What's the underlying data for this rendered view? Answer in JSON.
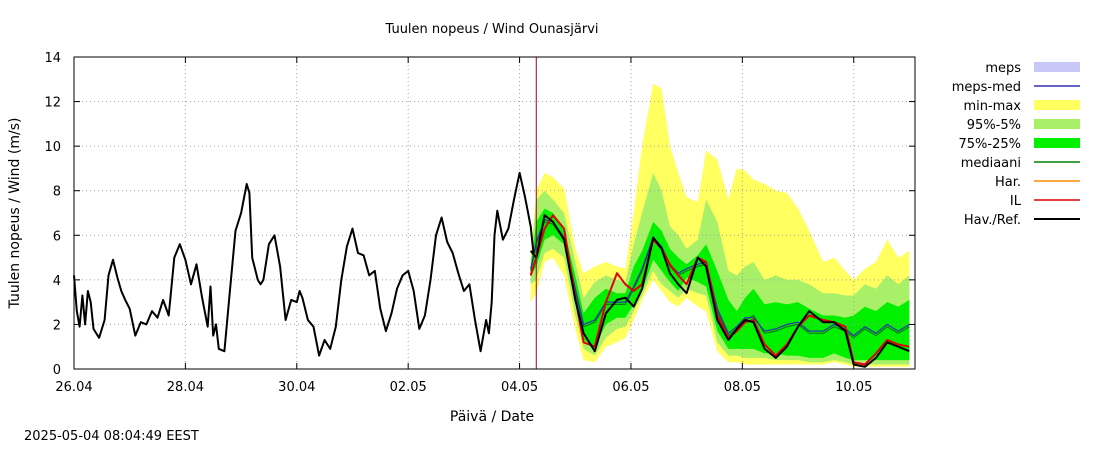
{
  "chart_data": {
    "type": "line",
    "title": "Tuulen nopeus / Wind  Ounasjärvi",
    "xlabel": "Päivä / Date",
    "ylabel": "Tuulen nopeus / Wind (m/s)",
    "ylim": [
      0,
      14
    ],
    "xlim": [
      0,
      15.1
    ],
    "grid": true,
    "yticks": [
      0,
      2,
      4,
      6,
      8,
      10,
      12,
      14
    ],
    "xticks": [
      {
        "x": 0,
        "label": "26.04"
      },
      {
        "x": 2,
        "label": "28.04"
      },
      {
        "x": 4,
        "label": "30.04"
      },
      {
        "x": 6,
        "label": "02.05"
      },
      {
        "x": 8,
        "label": "04.05"
      },
      {
        "x": 10,
        "label": "06.05"
      },
      {
        "x": 12,
        "label": "08.05"
      },
      {
        "x": 14,
        "label": "10.05"
      }
    ],
    "now_marker_x": 8.3,
    "legend_position": "right",
    "legend": [
      {
        "label": "meps",
        "type": "box",
        "color": "#c8c8f8"
      },
      {
        "label": "meps-med",
        "type": "line",
        "color": "#3030b0"
      },
      {
        "label": "min-max",
        "type": "box",
        "color": "#ffff60"
      },
      {
        "label": "95%-5%",
        "type": "box",
        "color": "#a8f068"
      },
      {
        "label": "75%-25%",
        "type": "box",
        "color": "#00f000"
      },
      {
        "label": "mediaani",
        "type": "line",
        "color": "#008000"
      },
      {
        "label": "Har.",
        "type": "line",
        "color": "#ff8c00"
      },
      {
        "label": "IL",
        "type": "line",
        "color": "#e00000"
      },
      {
        "label": "Hav./Ref.",
        "type": "line",
        "color": "#000000"
      }
    ],
    "forecast_x": [
      8.2,
      8.3,
      8.45,
      8.6,
      8.8,
      9.0,
      9.15,
      9.35,
      9.55,
      9.75,
      9.9,
      10.05,
      10.2,
      10.4,
      10.55,
      10.7,
      10.85,
      11.0,
      11.2,
      11.35,
      11.55,
      11.75,
      11.9,
      12.05,
      12.2,
      12.4,
      12.6,
      12.8,
      13.0,
      13.2,
      13.45,
      13.65,
      13.85,
      14.0,
      14.2,
      14.4,
      14.6,
      14.8,
      15.0
    ],
    "series": [
      {
        "name": "min-max",
        "color": "#ffff60",
        "low": [
          3.0,
          3.4,
          4.8,
          5.0,
          4.2,
          1.8,
          0.4,
          0.3,
          1.0,
          1.2,
          1.4,
          2.2,
          3.1,
          4.0,
          3.5,
          3.0,
          2.8,
          3.2,
          2.8,
          2.6,
          0.8,
          0.3,
          0.3,
          0.2,
          0.2,
          0.2,
          0.2,
          0.2,
          0.2,
          0.2,
          0.2,
          0.3,
          0.2,
          0.1,
          0.1,
          0.1,
          0.1,
          0.1,
          0.1
        ],
        "high": [
          5.0,
          8.0,
          8.8,
          8.6,
          8.1,
          5.4,
          4.3,
          4.6,
          4.8,
          4.6,
          4.5,
          7.0,
          10.0,
          12.8,
          12.6,
          10.0,
          8.8,
          7.7,
          7.5,
          9.8,
          9.4,
          7.6,
          9.0,
          8.9,
          8.5,
          8.3,
          8.0,
          7.9,
          7.2,
          6.2,
          4.8,
          5.0,
          4.4,
          4.0,
          4.5,
          4.8,
          5.8,
          5.0,
          5.3
        ]
      },
      {
        "name": "95%-5%",
        "color": "#a8f068",
        "low": [
          3.8,
          4.0,
          5.2,
          5.4,
          5.0,
          2.4,
          0.9,
          0.6,
          1.4,
          1.8,
          1.9,
          2.6,
          3.3,
          4.4,
          3.8,
          3.5,
          3.2,
          3.6,
          3.4,
          3.3,
          1.2,
          0.6,
          0.6,
          0.5,
          0.5,
          0.5,
          0.4,
          0.4,
          0.4,
          0.3,
          0.3,
          0.4,
          0.3,
          0.2,
          0.2,
          0.2,
          0.2,
          0.2,
          0.2
        ],
        "high": [
          4.8,
          7.6,
          8.0,
          7.6,
          7.0,
          4.8,
          3.2,
          3.9,
          4.2,
          4.0,
          3.9,
          5.6,
          7.0,
          8.8,
          8.0,
          6.4,
          6.0,
          5.4,
          5.8,
          7.6,
          6.6,
          4.4,
          4.2,
          4.6,
          4.8,
          4.0,
          4.2,
          4.0,
          4.0,
          3.8,
          3.4,
          3.4,
          3.3,
          3.3,
          3.8,
          3.6,
          4.2,
          3.8,
          4.2
        ]
      },
      {
        "name": "75%-25%",
        "color": "#00f000",
        "low": [
          4.2,
          4.6,
          5.8,
          6.0,
          5.6,
          3.0,
          1.3,
          1.0,
          2.0,
          2.3,
          2.3,
          2.9,
          3.5,
          4.9,
          4.4,
          3.9,
          3.5,
          4.1,
          3.9,
          3.7,
          1.7,
          0.9,
          0.9,
          0.9,
          0.9,
          0.7,
          0.7,
          0.6,
          0.6,
          0.5,
          0.5,
          0.7,
          0.5,
          0.4,
          0.4,
          0.4,
          0.4,
          0.4,
          0.4
        ],
        "high": [
          4.6,
          6.6,
          7.2,
          7.0,
          6.2,
          4.2,
          2.5,
          3.2,
          3.6,
          3.4,
          3.4,
          4.6,
          5.3,
          6.6,
          6.2,
          5.4,
          5.0,
          4.7,
          5.1,
          5.6,
          4.4,
          3.1,
          2.6,
          3.2,
          3.6,
          2.9,
          3.0,
          2.9,
          3.0,
          2.7,
          2.4,
          2.4,
          2.3,
          2.4,
          2.8,
          2.6,
          3.0,
          2.8,
          3.1
        ]
      },
      {
        "name": "mediaani",
        "color": "#008000",
        "values": [
          4.4,
          5.6,
          6.6,
          6.5,
          5.8,
          3.5,
          1.9,
          2.1,
          2.9,
          2.9,
          2.9,
          3.6,
          4.4,
          5.8,
          5.4,
          4.6,
          4.2,
          4.4,
          4.6,
          4.7,
          2.6,
          1.5,
          1.8,
          2.2,
          2.4,
          1.6,
          1.7,
          1.9,
          2.0,
          1.6,
          1.6,
          1.9,
          1.7,
          1.4,
          1.8,
          1.5,
          1.9,
          1.6,
          1.9
        ]
      },
      {
        "name": "meps-med",
        "color": "#3030b0",
        "values": [
          4.5,
          5.7,
          6.7,
          6.6,
          5.9,
          3.6,
          2.0,
          2.2,
          3.0,
          3.0,
          3.0,
          3.7,
          4.5,
          5.9,
          5.5,
          4.7,
          4.3,
          4.5,
          4.7,
          4.8,
          2.7,
          1.6,
          1.9,
          2.3,
          2.3,
          1.7,
          1.8,
          2.0,
          2.1,
          1.7,
          1.7,
          2.0,
          1.8,
          1.5,
          1.9,
          1.6,
          2.0,
          1.7,
          2.0
        ]
      },
      {
        "name": "IL",
        "color": "#e00000",
        "values": [
          4.2,
          5.0,
          6.3,
          6.9,
          6.3,
          3.2,
          1.2,
          1.0,
          3.0,
          4.3,
          3.8,
          3.5,
          3.8,
          5.8,
          5.4,
          4.7,
          4.2,
          3.8,
          5.0,
          4.8,
          2.4,
          1.4,
          1.7,
          2.1,
          2.2,
          1.1,
          0.6,
          1.1,
          1.9,
          2.4,
          2.2,
          2.1,
          1.9,
          0.3,
          0.2,
          0.7,
          1.3,
          1.1,
          1.0
        ]
      },
      {
        "name": "Hav./Ref. forecast",
        "color": "#000000",
        "values": [
          5.3,
          5.0,
          6.9,
          6.6,
          5.8,
          3.1,
          1.6,
          0.8,
          2.5,
          3.1,
          3.2,
          2.8,
          3.6,
          5.9,
          5.4,
          4.3,
          3.8,
          3.4,
          5.0,
          4.6,
          2.2,
          1.3,
          1.8,
          2.2,
          2.1,
          0.9,
          0.5,
          1.0,
          1.9,
          2.6,
          2.1,
          2.1,
          1.7,
          0.2,
          0.1,
          0.5,
          1.2,
          1.0,
          0.8
        ]
      },
      {
        "name": "Hav./Ref. observed",
        "color": "#000000",
        "x": [
          0.0,
          0.05,
          0.1,
          0.15,
          0.2,
          0.25,
          0.3,
          0.35,
          0.45,
          0.55,
          0.62,
          0.7,
          0.78,
          0.85,
          0.92,
          1.0,
          1.1,
          1.2,
          1.3,
          1.4,
          1.5,
          1.6,
          1.7,
          1.8,
          1.9,
          2.0,
          2.1,
          2.2,
          2.3,
          2.4,
          2.45,
          2.5,
          2.55,
          2.6,
          2.7,
          2.8,
          2.9,
          3.0,
          3.1,
          3.15,
          3.2,
          3.3,
          3.35,
          3.4,
          3.5,
          3.6,
          3.7,
          3.8,
          3.9,
          4.0,
          4.05,
          4.1,
          4.2,
          4.3,
          4.4,
          4.5,
          4.55,
          4.6,
          4.7,
          4.8,
          4.9,
          5.0,
          5.1,
          5.2,
          5.3,
          5.4,
          5.5,
          5.6,
          5.7,
          5.8,
          5.9,
          6.0,
          6.1,
          6.2,
          6.3,
          6.4,
          6.5,
          6.6,
          6.7,
          6.8,
          6.9,
          7.0,
          7.1,
          7.2,
          7.3,
          7.4,
          7.45,
          7.5,
          7.55,
          7.6,
          7.7,
          7.8,
          7.9,
          8.0,
          8.1,
          8.2,
          8.25
        ],
        "values": [
          4.2,
          2.6,
          1.9,
          3.3,
          2.0,
          3.5,
          3.0,
          1.8,
          1.4,
          2.2,
          4.2,
          4.9,
          4.1,
          3.5,
          3.1,
          2.7,
          1.5,
          2.1,
          2.0,
          2.6,
          2.3,
          3.1,
          2.4,
          5.0,
          5.6,
          4.9,
          3.8,
          4.7,
          3.2,
          1.9,
          3.7,
          1.5,
          2.0,
          0.9,
          0.8,
          3.5,
          6.2,
          7.0,
          8.3,
          7.9,
          5.0,
          4.0,
          3.8,
          4.0,
          5.6,
          6.0,
          4.6,
          2.2,
          3.1,
          3.0,
          3.5,
          3.2,
          2.2,
          1.9,
          0.6,
          1.3,
          1.1,
          0.9,
          1.9,
          4.0,
          5.5,
          6.3,
          5.2,
          5.1,
          4.2,
          4.4,
          2.7,
          1.7,
          2.5,
          3.6,
          4.2,
          4.4,
          3.5,
          1.8,
          2.4,
          4.0,
          6.0,
          6.8,
          5.7,
          5.2,
          4.3,
          3.5,
          3.8,
          2.2,
          0.8,
          2.2,
          1.6,
          3.0,
          6.0,
          7.1,
          5.8,
          6.3,
          7.6,
          8.8,
          7.7,
          6.4,
          5.2
        ]
      }
    ]
  },
  "timestamp": "2025-05-04 08:04:49 EEST"
}
